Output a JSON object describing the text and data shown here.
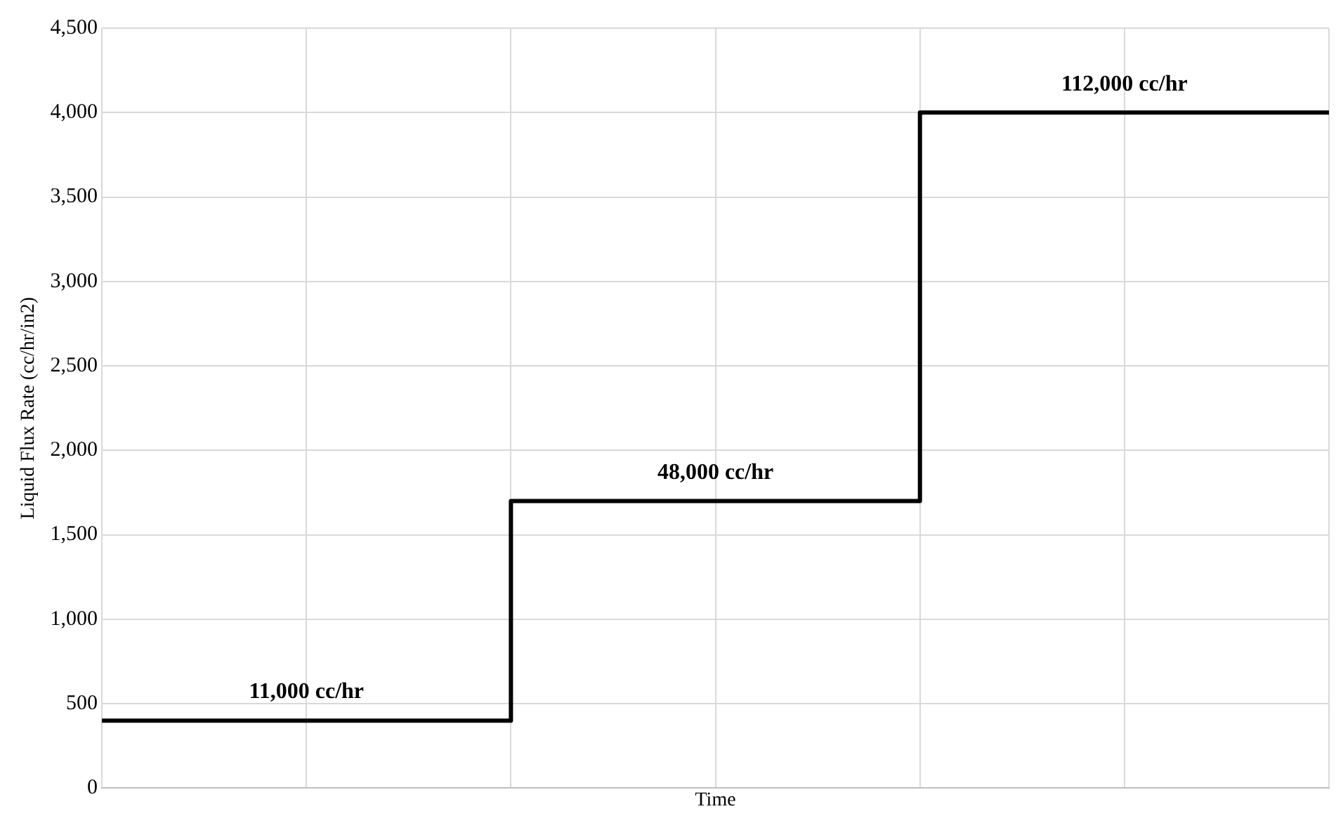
{
  "chart_data": {
    "type": "step",
    "xlabel": "Time",
    "ylabel": "Liquid Flux Rate (cc/hr/in2)",
    "categories": [
      null,
      null,
      null,
      null,
      null,
      null,
      null
    ],
    "series": [
      {
        "color": "#000000",
        "values": [
          400,
          400,
          1700,
          1700,
          4000,
          4000,
          4000
        ]
      }
    ],
    "ylim": [
      0,
      4500
    ],
    "yticks": [
      0,
      500,
      {
        "value": 1000,
        "label": "1,000"
      },
      {
        "value": 1500,
        "label": "1,500"
      },
      {
        "value": 2000,
        "label": "2,000"
      },
      {
        "value": 2500,
        "label": "2,500"
      },
      {
        "value": 3000,
        "label": "3,000"
      },
      {
        "value": 3500,
        "label": "3,500"
      },
      {
        "value": 4000,
        "label": "4,000"
      },
      {
        "value": 4500,
        "label": "4,500"
      }
    ],
    "annotations": [
      {
        "text": "11,000 cc/hr",
        "y": 400
      },
      {
        "text": "48,000 cc/hr",
        "y": 1700
      },
      {
        "text": "112,000 cc/hr",
        "y": 4000
      }
    ],
    "grid": true,
    "legend": false,
    "tick_labels": "y",
    "marker": "none",
    "line_style": "solid"
  }
}
